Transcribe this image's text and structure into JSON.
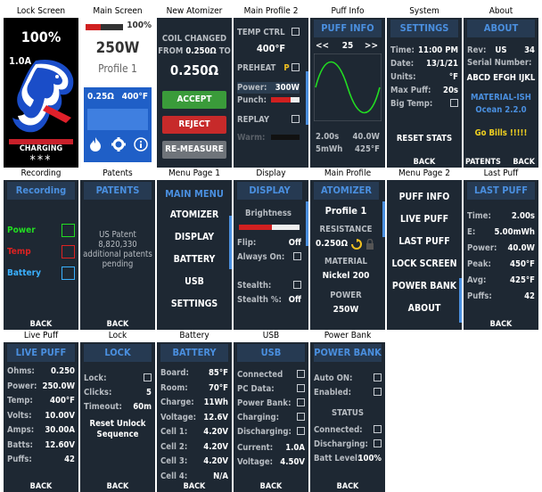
{
  "lock_screen": {
    "caption": "Lock Screen",
    "battery": "100%",
    "current": "1.0A",
    "status": "CHARGING",
    "stars": "***"
  },
  "main_screen": {
    "caption": "Main Screen",
    "battery": "100%",
    "power": "250W",
    "profile": "Profile 1",
    "resistance": "0.25Ω",
    "temp": "400°F",
    "icons": [
      "flame-icon",
      "gear-icon",
      "info-icon"
    ]
  },
  "new_atomizer": {
    "caption": "New Atomizer",
    "line1": "COIL CHANGED",
    "from_label": "FROM",
    "from_value": "0.250Ω",
    "to_label": "TO",
    "to_value": "0.250Ω",
    "accept": "ACCEPT",
    "reject": "REJECT",
    "remeasure": "RE-MEASURE"
  },
  "main_profile2": {
    "caption": "Main Profile 2",
    "temp_ctrl": "TEMP CTRL",
    "temp": "400°F",
    "preheat": "PREHEAT",
    "preheat_mark": "P",
    "power_label": "Power:",
    "power": "300W",
    "punch": "Punch:",
    "replay": "REPLAY",
    "warm": "Warm:",
    "punch_level": 0.7
  },
  "puff_info": {
    "caption": "Puff Info",
    "header": "PUFF INFO",
    "prev": "<<",
    "number": "25",
    "next": ">>",
    "time": "2.00s",
    "power": "40.0W",
    "energy": "5mWh",
    "temp": "425°F"
  },
  "system": {
    "caption": "System",
    "header": "SETTINGS",
    "rows": [
      {
        "label": "Time:",
        "value": "11:00 PM"
      },
      {
        "label": "Date:",
        "value": "13/1/21"
      },
      {
        "label": "Units:",
        "value": "°F"
      },
      {
        "label": "Max Puff:",
        "value": "20s"
      },
      {
        "label": "Big Temp:",
        "value": ""
      }
    ],
    "reset": "RESET STATS",
    "back": "BACK"
  },
  "about": {
    "caption": "About",
    "header": "ABOUT",
    "rev_label": "Rev:",
    "rev_country": "US",
    "rev_num": "34",
    "serial_label": "Serial Number:",
    "serial": "ABCD EFGH IJKL",
    "theme": "MATERIAL-ISH",
    "theme2": "Ocean 2.2.0",
    "motto": "Go Bills !!!!!",
    "patents": "PATENTS",
    "back": "BACK"
  },
  "recording": {
    "caption": "Recording",
    "header": "Recording",
    "items": [
      {
        "label": "Power",
        "color": "#22dd22"
      },
      {
        "label": "Temp",
        "color": "#dd2222"
      },
      {
        "label": "Battery",
        "color": "#3ab0ff"
      }
    ],
    "back": "BACK"
  },
  "patents": {
    "caption": "Patents",
    "header": "PATENTS",
    "line1": "US Patent",
    "line2": "8,820,330",
    "line3": "additional patents",
    "line4": "pending",
    "back": "BACK"
  },
  "menu_page1": {
    "caption": "Menu Page 1",
    "header": "MAIN MENU",
    "items": [
      "ATOMIZER",
      "DISPLAY",
      "BATTERY",
      "USB",
      "SETTINGS"
    ]
  },
  "display": {
    "caption": "Display",
    "header": "DISPLAY",
    "brightness": "Brightness",
    "brightness_level": 0.55,
    "flip": "Flip:",
    "flip_value": "Off",
    "always_on": "Always On:",
    "stealth": "Stealth:",
    "stealth_pct": "Stealth %:",
    "stealth_pct_value": "Off"
  },
  "main_profile": {
    "caption": "Main Profile",
    "header": "ATOMIZER",
    "profile": "Profile 1",
    "resistance_label": "RESISTANCE",
    "resistance": "0.250Ω",
    "material_label": "MATERIAL",
    "material": "Nickel 200",
    "power_label": "POWER",
    "power": "250W"
  },
  "menu_page2": {
    "caption": "Menu Page 2",
    "items": [
      "PUFF INFO",
      "LIVE PUFF",
      "LAST PUFF",
      "LOCK SCREEN",
      "POWER BANK",
      "ABOUT"
    ]
  },
  "last_puff": {
    "caption": "Last Puff",
    "header": "LAST PUFF",
    "rows": [
      {
        "label": "Time:",
        "value": "2.00s"
      },
      {
        "label": "E:",
        "value": "5.00mWh"
      },
      {
        "label": "Power:",
        "value": "40.0W"
      },
      {
        "label": "Peak:",
        "value": "450°F"
      },
      {
        "label": "Avg:",
        "value": "425°F"
      },
      {
        "label": "Puffs:",
        "value": "42"
      }
    ],
    "back": "BACK"
  },
  "live_puff": {
    "caption": "Live Puff",
    "header": "LIVE PUFF",
    "rows": [
      {
        "label": "Ohms:",
        "value": "0.250"
      },
      {
        "label": "Power:",
        "value": "250.0W"
      },
      {
        "label": "Temp:",
        "value": "400°F"
      },
      {
        "label": "Volts:",
        "value": "10.00V"
      },
      {
        "label": "Amps:",
        "value": "30.00A"
      },
      {
        "label": "Batts:",
        "value": "12.60V"
      },
      {
        "label": "Puffs:",
        "value": "42"
      }
    ],
    "back": "BACK"
  },
  "lock": {
    "caption": "Lock",
    "header": "LOCK",
    "lock_label": "Lock:",
    "clicks_label": "Clicks:",
    "clicks": "5",
    "timeout_label": "Timeout:",
    "timeout": "60m",
    "reset1": "Reset Unlock",
    "reset2": "Sequence",
    "back": "BACK"
  },
  "battery": {
    "caption": "Battery",
    "header": "BATTERY",
    "rows": [
      {
        "label": "Board:",
        "value": "85°F"
      },
      {
        "label": "Room:",
        "value": "70°F"
      },
      {
        "label": "Charge:",
        "value": "11Wh"
      },
      {
        "label": "Voltage:",
        "value": "12.6V"
      },
      {
        "label": "Cell 1:",
        "value": "4.20V"
      },
      {
        "label": "Cell 2:",
        "value": "4.20V"
      },
      {
        "label": "Cell 3:",
        "value": "4.20V"
      },
      {
        "label": "Cell 4:",
        "value": "N/A"
      }
    ],
    "back": "BACK"
  },
  "usb": {
    "caption": "USB",
    "header": "USB",
    "checks": [
      "Connected",
      "PC Data:",
      "Power Bank:",
      "Charging:",
      "Discharging:"
    ],
    "current_label": "Current:",
    "current": "1.0A",
    "voltage_label": "Voltage:",
    "voltage": "4.50V",
    "back": "BACK"
  },
  "power_bank": {
    "caption": "Power Bank",
    "header": "POWER BANK",
    "auto_on": "Auto ON:",
    "enabled": "Enabled:",
    "status": "STATUS",
    "connected": "Connected:",
    "discharging": "Discharging:",
    "batt_label": "Batt Level:",
    "batt": "100%",
    "back": "BACK"
  }
}
